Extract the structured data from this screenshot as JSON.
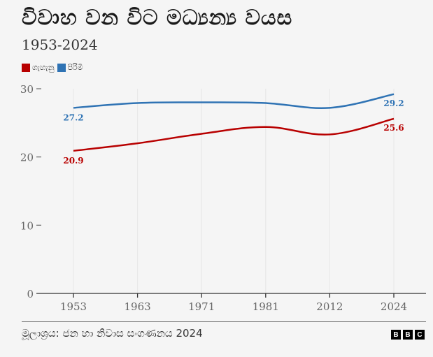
{
  "header": {
    "title": "විවාහ වන විට මධ්‍යන්‍ය වයස",
    "subtitle": "1953-2024"
  },
  "legend": [
    {
      "label": "ගැහැනු",
      "color": "#b80000"
    },
    {
      "label": "පිරිමි",
      "color": "#2f73b4"
    }
  ],
  "footer": {
    "source": "මූලාශ්‍රය: ජන හා නිවාස සංගණනය 2024",
    "logo_letters": [
      "B",
      "B",
      "C"
    ]
  },
  "chart_data": {
    "type": "line",
    "title": "විවාහ වන විට මධ්‍යන්‍ය වයස",
    "subtitle": "1953-2024",
    "categories": [
      "1953",
      "1963",
      "1971",
      "1981",
      "2012",
      "2024"
    ],
    "series": [
      {
        "name": "ගැහැනු",
        "color": "#b80000",
        "values": [
          20.9,
          22.0,
          23.4,
          24.4,
          23.3,
          25.6
        ],
        "end_labels": [
          "20.9",
          "25.6"
        ]
      },
      {
        "name": "පිරිමි",
        "color": "#2f73b4",
        "values": [
          27.2,
          27.9,
          28.0,
          27.9,
          27.2,
          29.2
        ],
        "end_labels": [
          "27.2",
          "29.2"
        ]
      }
    ],
    "yticks": [
      "0",
      "10",
      "20",
      "30"
    ],
    "ylim": [
      0,
      30
    ],
    "xlabel": "",
    "ylabel": "",
    "grid": "vertical",
    "legend_position": "top-left"
  }
}
